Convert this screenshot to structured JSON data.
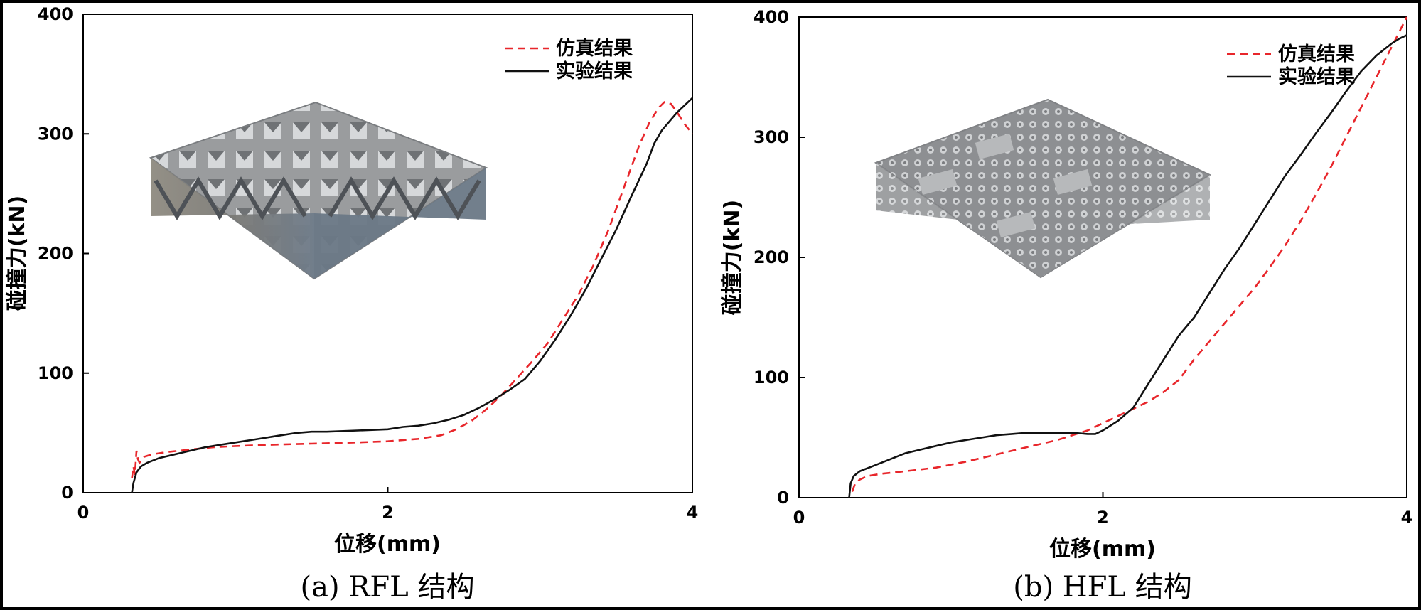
{
  "chart_data": [
    {
      "type": "line",
      "panel": "a",
      "caption": "(a) RFL 结构",
      "xlabel": "位移(mm)",
      "ylabel": "碰撞力(kN)",
      "xlim": [
        0,
        4
      ],
      "ylim": [
        0,
        400
      ],
      "xticks": [
        0,
        2,
        4
      ],
      "yticks": [
        0,
        100,
        200,
        300,
        400
      ],
      "legend_position": "top-right",
      "inset_image": "rfl-lattice-structure",
      "series": [
        {
          "name": "仿真结果",
          "color": "#e8262b",
          "dash": "dashed",
          "x": [
            0.32,
            0.33,
            0.34,
            0.35,
            0.36,
            0.37,
            0.4,
            0.45,
            0.55,
            0.7,
            0.85,
            1.0,
            1.2,
            1.5,
            1.8,
            2.0,
            2.2,
            2.35,
            2.45,
            2.55,
            2.65,
            2.75,
            2.85,
            2.95,
            3.05,
            3.15,
            3.25,
            3.35,
            3.45,
            3.55,
            3.65,
            3.72,
            3.78,
            3.82,
            3.86,
            3.9,
            3.95,
            4.0
          ],
          "y": [
            12,
            22,
            15,
            35,
            28,
            25,
            30,
            32,
            34,
            36,
            38,
            39,
            40,
            41,
            42,
            43,
            45,
            48,
            53,
            60,
            70,
            82,
            96,
            110,
            125,
            145,
            165,
            190,
            220,
            255,
            290,
            310,
            322,
            327,
            325,
            318,
            308,
            300
          ]
        },
        {
          "name": "实验结果",
          "color": "#111111",
          "dash": "solid",
          "x": [
            0.32,
            0.33,
            0.35,
            0.38,
            0.42,
            0.5,
            0.6,
            0.7,
            0.8,
            0.9,
            1.0,
            1.1,
            1.2,
            1.3,
            1.4,
            1.5,
            1.6,
            1.8,
            2.0,
            2.1,
            2.2,
            2.3,
            2.4,
            2.5,
            2.6,
            2.7,
            2.8,
            2.9,
            3.0,
            3.1,
            3.2,
            3.3,
            3.4,
            3.5,
            3.6,
            3.7,
            3.75,
            3.8,
            3.9,
            4.0
          ],
          "y": [
            0,
            8,
            17,
            22,
            25,
            29,
            32,
            35,
            38,
            40,
            42,
            44,
            46,
            48,
            50,
            51,
            51,
            52,
            53,
            55,
            56,
            58,
            61,
            65,
            71,
            78,
            86,
            95,
            110,
            128,
            148,
            170,
            195,
            220,
            248,
            275,
            292,
            303,
            318,
            330
          ]
        }
      ]
    },
    {
      "type": "line",
      "panel": "b",
      "caption": "(b) HFL 结构",
      "xlabel": "位移(mm)",
      "ylabel": "碰撞力(kN)",
      "xlim": [
        0,
        4
      ],
      "ylim": [
        0,
        400
      ],
      "xticks": [
        0,
        2,
        4
      ],
      "yticks": [
        0,
        100,
        200,
        300,
        400
      ],
      "legend_position": "top-right",
      "inset_image": "hfl-lattice-structure",
      "series": [
        {
          "name": "仿真结果",
          "color": "#e8262b",
          "dash": "dashed",
          "x": [
            0.35,
            0.37,
            0.4,
            0.45,
            0.55,
            0.7,
            0.9,
            1.1,
            1.3,
            1.5,
            1.7,
            1.9,
            2.0,
            2.1,
            2.2,
            2.3,
            2.4,
            2.5,
            2.6,
            2.7,
            2.8,
            2.9,
            3.0,
            3.1,
            3.2,
            3.3,
            3.4,
            3.5,
            3.6,
            3.7,
            3.8,
            3.9,
            4.0
          ],
          "y": [
            5,
            12,
            15,
            18,
            20,
            22,
            25,
            30,
            36,
            42,
            48,
            56,
            62,
            68,
            74,
            80,
            88,
            98,
            115,
            130,
            145,
            160,
            175,
            192,
            210,
            230,
            252,
            275,
            300,
            325,
            350,
            375,
            400
          ]
        },
        {
          "name": "实验结果",
          "color": "#111111",
          "dash": "solid",
          "x": [
            0.33,
            0.34,
            0.36,
            0.4,
            0.5,
            0.6,
            0.7,
            0.8,
            0.9,
            1.0,
            1.1,
            1.2,
            1.3,
            1.4,
            1.5,
            1.6,
            1.7,
            1.8,
            1.9,
            1.95,
            2.0,
            2.1,
            2.2,
            2.3,
            2.4,
            2.5,
            2.6,
            2.7,
            2.8,
            2.9,
            3.0,
            3.1,
            3.2,
            3.3,
            3.4,
            3.5,
            3.6,
            3.7,
            3.8,
            3.9,
            3.95,
            4.0
          ],
          "y": [
            0,
            12,
            18,
            22,
            27,
            32,
            37,
            40,
            43,
            46,
            48,
            50,
            52,
            53,
            54,
            54,
            54,
            54,
            53,
            53,
            56,
            64,
            75,
            95,
            115,
            135,
            150,
            170,
            190,
            208,
            228,
            248,
            268,
            285,
            303,
            320,
            338,
            355,
            368,
            378,
            382,
            385
          ]
        }
      ]
    }
  ]
}
